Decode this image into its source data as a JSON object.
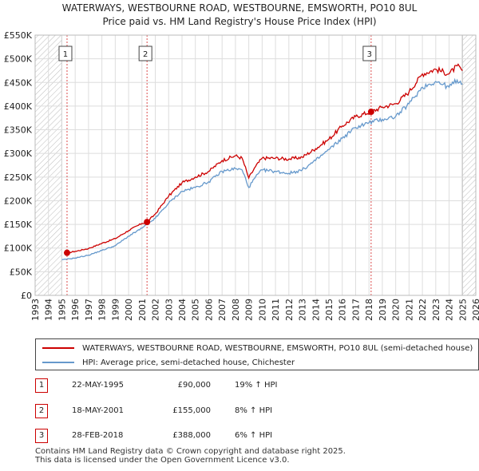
{
  "title_line1": "WATERWAYS, WESTBOURNE ROAD, WESTBOURNE, EMSWORTH, PO10 8UL",
  "title_line2": "Price paid vs. HM Land Registry's House Price Index (HPI)",
  "colors": {
    "property": "#cc0000",
    "hpi": "#6699cc",
    "marker": "#cc0000"
  },
  "legend": [
    "WATERWAYS, WESTBOURNE ROAD, WESTBOURNE, EMSWORTH, PO10 8UL (semi-detached house)",
    "HPI: Average price, semi-detached house, Chichester"
  ],
  "transactions": [
    {
      "num": "1",
      "date": "22-MAY-1995",
      "price": "£90,000",
      "hpi": "19% ↑ HPI"
    },
    {
      "num": "2",
      "date": "18-MAY-2001",
      "price": "£155,000",
      "hpi": "8% ↑ HPI"
    },
    {
      "num": "3",
      "date": "28-FEB-2018",
      "price": "£388,000",
      "hpi": "6% ↑ HPI"
    }
  ],
  "footer_line1": "Contains HM Land Registry data © Crown copyright and database right 2025.",
  "footer_line2": "This data is licensed under the Open Government Licence v3.0.",
  "chart_data": {
    "type": "line",
    "title": "WATERWAYS, WESTBOURNE ROAD, WESTBOURNE, EMSWORTH, PO10 8UL — Price paid vs. HM Land Registry's House Price Index (HPI)",
    "xlim": [
      1993,
      2026
    ],
    "ylim": [
      0,
      550000
    ],
    "x_ticks": [
      1993,
      1994,
      1995,
      1996,
      1997,
      1998,
      1999,
      2000,
      2001,
      2002,
      2003,
      2004,
      2005,
      2006,
      2007,
      2008,
      2009,
      2010,
      2011,
      2012,
      2013,
      2014,
      2015,
      2016,
      2017,
      2018,
      2019,
      2020,
      2021,
      2022,
      2023,
      2024,
      2025,
      2026
    ],
    "y_ticks": [
      0,
      50000,
      100000,
      150000,
      200000,
      250000,
      300000,
      350000,
      400000,
      450000,
      500000,
      550000
    ],
    "y_tick_labels": [
      "£0",
      "£50K",
      "£100K",
      "£150K",
      "£200K",
      "£250K",
      "£300K",
      "£350K",
      "£400K",
      "£450K",
      "£500K",
      "£550K"
    ],
    "hatched_regions": [
      [
        1993,
        1995.0
      ],
      [
        2025.0,
        2026
      ]
    ],
    "sales": [
      {
        "label": "1",
        "x": 1995.39,
        "y": 90000
      },
      {
        "label": "2",
        "x": 2001.38,
        "y": 155000
      },
      {
        "label": "3",
        "x": 2018.16,
        "y": 388000
      }
    ],
    "series": [
      {
        "name": "WATERWAYS, WESTBOURNE ROAD, WESTBOURNE, EMSWORTH, PO10 8UL (semi-detached house)",
        "points": [
          [
            1995.39,
            90000
          ],
          [
            1996,
            93000
          ],
          [
            1997,
            99000
          ],
          [
            1998,
            110000
          ],
          [
            1999,
            120000
          ],
          [
            2000,
            137000
          ],
          [
            2001,
            152000
          ],
          [
            2001.38,
            155000
          ],
          [
            2002,
            172000
          ],
          [
            2003,
            210000
          ],
          [
            2004,
            238000
          ],
          [
            2005,
            250000
          ],
          [
            2006,
            262000
          ],
          [
            2007,
            285000
          ],
          [
            2008,
            295000
          ],
          [
            2008.5,
            290000
          ],
          [
            2009,
            248000
          ],
          [
            2009.5,
            272000
          ],
          [
            2010,
            290000
          ],
          [
            2011,
            290000
          ],
          [
            2012,
            288000
          ],
          [
            2013,
            292000
          ],
          [
            2014,
            310000
          ],
          [
            2015,
            330000
          ],
          [
            2016,
            358000
          ],
          [
            2017,
            378000
          ],
          [
            2018.16,
            388000
          ],
          [
            2019,
            398000
          ],
          [
            2020,
            405000
          ],
          [
            2021,
            430000
          ],
          [
            2022,
            468000
          ],
          [
            2023,
            478000
          ],
          [
            2024,
            468000
          ],
          [
            2024.6,
            485000
          ],
          [
            2025,
            475000
          ]
        ]
      },
      {
        "name": "HPI: Average price, semi-detached house, Chichester",
        "points": [
          [
            1995,
            75000
          ],
          [
            1996,
            79000
          ],
          [
            1997,
            85000
          ],
          [
            1998,
            95000
          ],
          [
            1999,
            105000
          ],
          [
            2000,
            125000
          ],
          [
            2001,
            142000
          ],
          [
            2002,
            163000
          ],
          [
            2003,
            195000
          ],
          [
            2004,
            220000
          ],
          [
            2005,
            228000
          ],
          [
            2006,
            240000
          ],
          [
            2007,
            262000
          ],
          [
            2008,
            268000
          ],
          [
            2008.5,
            265000
          ],
          [
            2009,
            228000
          ],
          [
            2009.5,
            250000
          ],
          [
            2010,
            265000
          ],
          [
            2011,
            262000
          ],
          [
            2012,
            258000
          ],
          [
            2013,
            265000
          ],
          [
            2014,
            285000
          ],
          [
            2015,
            308000
          ],
          [
            2016,
            332000
          ],
          [
            2017,
            355000
          ],
          [
            2018,
            365000
          ],
          [
            2019,
            372000
          ],
          [
            2020,
            378000
          ],
          [
            2021,
            405000
          ],
          [
            2022,
            440000
          ],
          [
            2023,
            452000
          ],
          [
            2024,
            440000
          ],
          [
            2024.6,
            455000
          ],
          [
            2025,
            447000
          ]
        ]
      }
    ]
  }
}
